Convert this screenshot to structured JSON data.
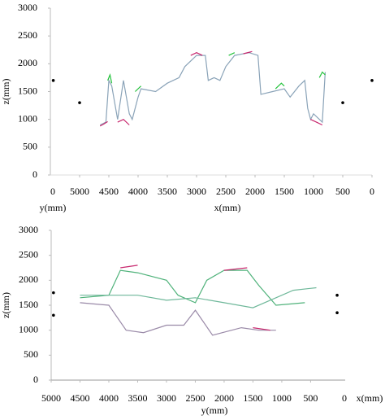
{
  "chart_data": [
    {
      "type": "line",
      "ylabel": "z(mm)",
      "xlabel": "x(mm)",
      "side_label": "y(mm)",
      "side_tick": 0,
      "xlim": [
        5500,
        0
      ],
      "ylim": [
        0,
        3000
      ],
      "xticks": [
        5000,
        4500,
        4000,
        3500,
        3000,
        2500,
        2000,
        1500,
        1000,
        500,
        0
      ],
      "yticks": [
        0,
        500,
        1000,
        1500,
        2000,
        2500,
        3000
      ],
      "series": [
        {
          "mode": "line",
          "color": "#8aa3b8",
          "x": [
            4650,
            4550,
            4500,
            4450,
            4350,
            4250,
            4150,
            4100,
            4000,
            3950,
            3700,
            3500,
            3300,
            3200,
            3000,
            2850,
            2800,
            2700,
            2600,
            2500,
            2350,
            2100,
            1950,
            1900,
            1700,
            1500,
            1400,
            1250,
            1150,
            1100,
            1050,
            1000,
            850,
            800
          ],
          "values": [
            900,
            950,
            1700,
            1600,
            1000,
            1700,
            1100,
            1000,
            1400,
            1550,
            1500,
            1650,
            1750,
            1950,
            2150,
            2150,
            1700,
            1750,
            1700,
            1950,
            2150,
            2200,
            2150,
            1450,
            1500,
            1550,
            1400,
            1600,
            1700,
            1200,
            1000,
            1100,
            950,
            1850
          ]
        },
        {
          "mode": "line",
          "color": "#c8286e",
          "x": [
            4650,
            4580,
            4520,
            null,
            4350,
            4250,
            4150,
            null,
            3100,
            3000,
            2900,
            null,
            2200,
            2050,
            null,
            1050,
            950,
            850
          ],
          "values": [
            880,
            920,
            960,
            null,
            950,
            1000,
            900,
            null,
            2150,
            2200,
            2150,
            null,
            2180,
            2220,
            null,
            1000,
            950,
            900
          ]
        },
        {
          "mode": "line",
          "color": "#22c23a",
          "x": [
            4520,
            4480,
            4450,
            null,
            4050,
            3950,
            null,
            2450,
            2350,
            null,
            1650,
            1550,
            1500,
            null,
            900,
            850,
            800
          ],
          "values": [
            1700,
            1800,
            1650,
            null,
            1500,
            1600,
            null,
            2150,
            2200,
            null,
            1550,
            1650,
            1600,
            null,
            1750,
            1850,
            1800
          ]
        },
        {
          "mode": "markers",
          "color": "#000000",
          "x": [
            5450,
            5000,
            500,
            0
          ],
          "values": [
            1700,
            1300,
            1300,
            1700
          ]
        }
      ]
    },
    {
      "type": "line",
      "ylabel": "z(mm)",
      "xlabel": "y(mm)",
      "side_label": "x(mm)",
      "side_tick": 0,
      "xlim": [
        5000,
        -100
      ],
      "ylim": [
        0,
        3000
      ],
      "xticks": [
        5000,
        4500,
        4000,
        3500,
        3000,
        2500,
        2000,
        1500,
        1000,
        500
      ],
      "yticks": [
        0,
        500,
        1000,
        1500,
        2000,
        2500,
        3000
      ],
      "series": [
        {
          "mode": "line",
          "color": "#4fb27a",
          "x": [
            4500,
            4000,
            3800,
            3500,
            3000,
            2800,
            2500,
            2300,
            2000,
            1600,
            1400,
            1100,
            600
          ],
          "values": [
            1650,
            1700,
            2200,
            2150,
            2000,
            1700,
            1550,
            2000,
            2200,
            2200,
            1900,
            1500,
            1550
          ]
        },
        {
          "mode": "line",
          "color": "#6fb89a",
          "x": [
            4500,
            3500,
            3000,
            2500,
            2000,
            1500,
            1100,
            800,
            400
          ],
          "values": [
            1700,
            1700,
            1600,
            1650,
            1550,
            1450,
            1650,
            1800,
            1850
          ]
        },
        {
          "mode": "line",
          "color": "#9a8aa8",
          "x": [
            4500,
            4000,
            3700,
            3400,
            3000,
            2700,
            2500,
            2200,
            1700,
            1400,
            1100
          ],
          "values": [
            1550,
            1500,
            1000,
            950,
            1100,
            1100,
            1400,
            900,
            1050,
            1000,
            1000
          ]
        },
        {
          "mode": "line",
          "color": "#c8286e",
          "x": [
            3800,
            3500,
            null,
            2000,
            1600,
            null,
            1500,
            1200
          ],
          "values": [
            2250,
            2300,
            null,
            2200,
            2250,
            null,
            1050,
            1000
          ]
        },
        {
          "mode": "markers",
          "color": "#000000",
          "x": [
            4960,
            4960,
            40,
            40
          ],
          "values": [
            1750,
            1300,
            1700,
            1350
          ]
        }
      ]
    }
  ]
}
